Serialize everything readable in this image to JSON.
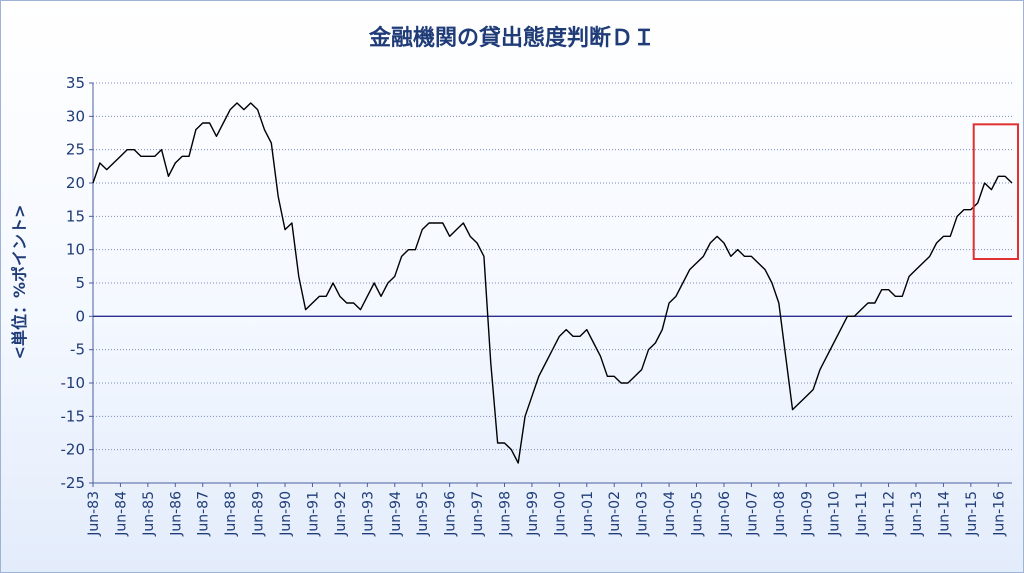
{
  "chart_data": {
    "type": "line",
    "title": "金融機関の貸出態度判断ＤＩ",
    "ylabel": "<単位：%ポイント>",
    "xlabel": "",
    "ylim": [
      -25,
      35
    ],
    "yticks": [
      35,
      30,
      25,
      20,
      15,
      10,
      5,
      0,
      -5,
      -10,
      -15,
      -20,
      -25
    ],
    "grid": "horizontal-dotted",
    "legend": "none",
    "x_start": "Jun-83",
    "x_frequency": "quarterly",
    "xtick_labels": [
      "Jun-83",
      "Jun-84",
      "Jun-85",
      "Jun-86",
      "Jun-87",
      "Jun-88",
      "Jun-89",
      "Jun-90",
      "Jun-91",
      "Jun-92",
      "Jun-93",
      "Jun-94",
      "Jun-95",
      "Jun-96",
      "Jun-97",
      "Jun-98",
      "Jun-99",
      "Jun-00",
      "Jun-01",
      "Jun-02",
      "Jun-03",
      "Jun-04",
      "Jun-05",
      "Jun-06",
      "Jun-07",
      "Jun-08",
      "Jun-09",
      "Jun-10",
      "Jun-11",
      "Jun-12",
      "Jun-13",
      "Jun-14",
      "Jun-15",
      "Jun-16"
    ],
    "series": [
      {
        "values": [
          20,
          23,
          22,
          23,
          24,
          25,
          25,
          24,
          24,
          24,
          25,
          21,
          23,
          24,
          24,
          28,
          29,
          29,
          27,
          29,
          31,
          32,
          31,
          32,
          31,
          28,
          26,
          18,
          13,
          14,
          6,
          1,
          2,
          3,
          3,
          5,
          3,
          2,
          2,
          1,
          3,
          5,
          3,
          5,
          6,
          9,
          10,
          10,
          13,
          14,
          14,
          14,
          12,
          13,
          14,
          12,
          11,
          9,
          -7,
          -19,
          -19,
          -20,
          -22,
          -15,
          -12,
          -9,
          -7,
          -5,
          -3,
          -2,
          -3,
          -3,
          -2,
          -4,
          -6,
          -9,
          -9,
          -10,
          -10,
          -9,
          -8,
          -5,
          -4,
          -2,
          2,
          3,
          5,
          7,
          8,
          9,
          11,
          12,
          11,
          9,
          10,
          9,
          9,
          8,
          7,
          5,
          2,
          -6,
          -14,
          -13,
          -12,
          -11,
          -8,
          -6,
          -4,
          -2,
          0,
          0,
          1,
          2,
          2,
          4,
          4,
          3,
          3,
          6,
          7,
          8,
          9,
          11,
          12,
          12,
          15,
          16,
          16,
          17,
          20,
          19,
          21,
          21,
          20
        ]
      }
    ],
    "highlight_color": "#e03030",
    "line_color": "#000000",
    "zero_line_color": "#2b2f8f",
    "text_color": "#1f3c78"
  }
}
